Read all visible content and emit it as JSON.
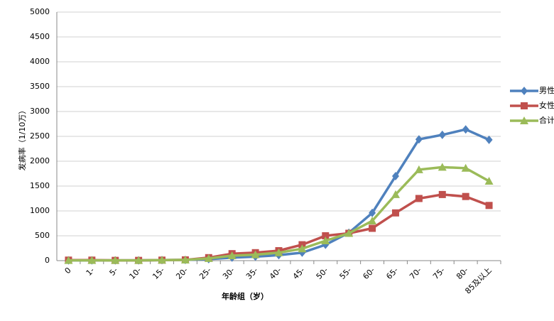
{
  "chart_data": {
    "type": "line",
    "x_label": "年龄组（岁）",
    "y_label": "发病率（1/10万）",
    "categories": [
      "0",
      "1-",
      "5-",
      "10-",
      "15-",
      "20-",
      "25-",
      "30-",
      "35-",
      "40-",
      "45-",
      "50-",
      "55-",
      "60-",
      "65-",
      "70-",
      "75-",
      "80-",
      "85及以上"
    ],
    "series": [
      {
        "name": "男性",
        "color": "#4f81bd",
        "marker": "diamond",
        "values": [
          5,
          5,
          5,
          5,
          10,
          15,
          30,
          60,
          80,
          110,
          160,
          320,
          560,
          960,
          1700,
          2440,
          2530,
          2640,
          2430
        ]
      },
      {
        "name": "女性",
        "color": "#c0504d",
        "marker": "square",
        "values": [
          10,
          10,
          5,
          5,
          10,
          15,
          60,
          140,
          160,
          200,
          320,
          500,
          550,
          650,
          960,
          1250,
          1330,
          1290,
          1110
        ]
      },
      {
        "name": "合计",
        "color": "#9bbb59",
        "marker": "triangle",
        "values": [
          5,
          5,
          5,
          5,
          10,
          15,
          45,
          100,
          120,
          160,
          240,
          400,
          550,
          800,
          1330,
          1830,
          1880,
          1860,
          1600
        ]
      }
    ],
    "ylim": [
      0,
      5000
    ],
    "yticks": [
      0,
      500,
      1000,
      1500,
      2000,
      2500,
      3000,
      3500,
      4000,
      4500,
      5000
    ],
    "grid": true,
    "legend": "right"
  }
}
